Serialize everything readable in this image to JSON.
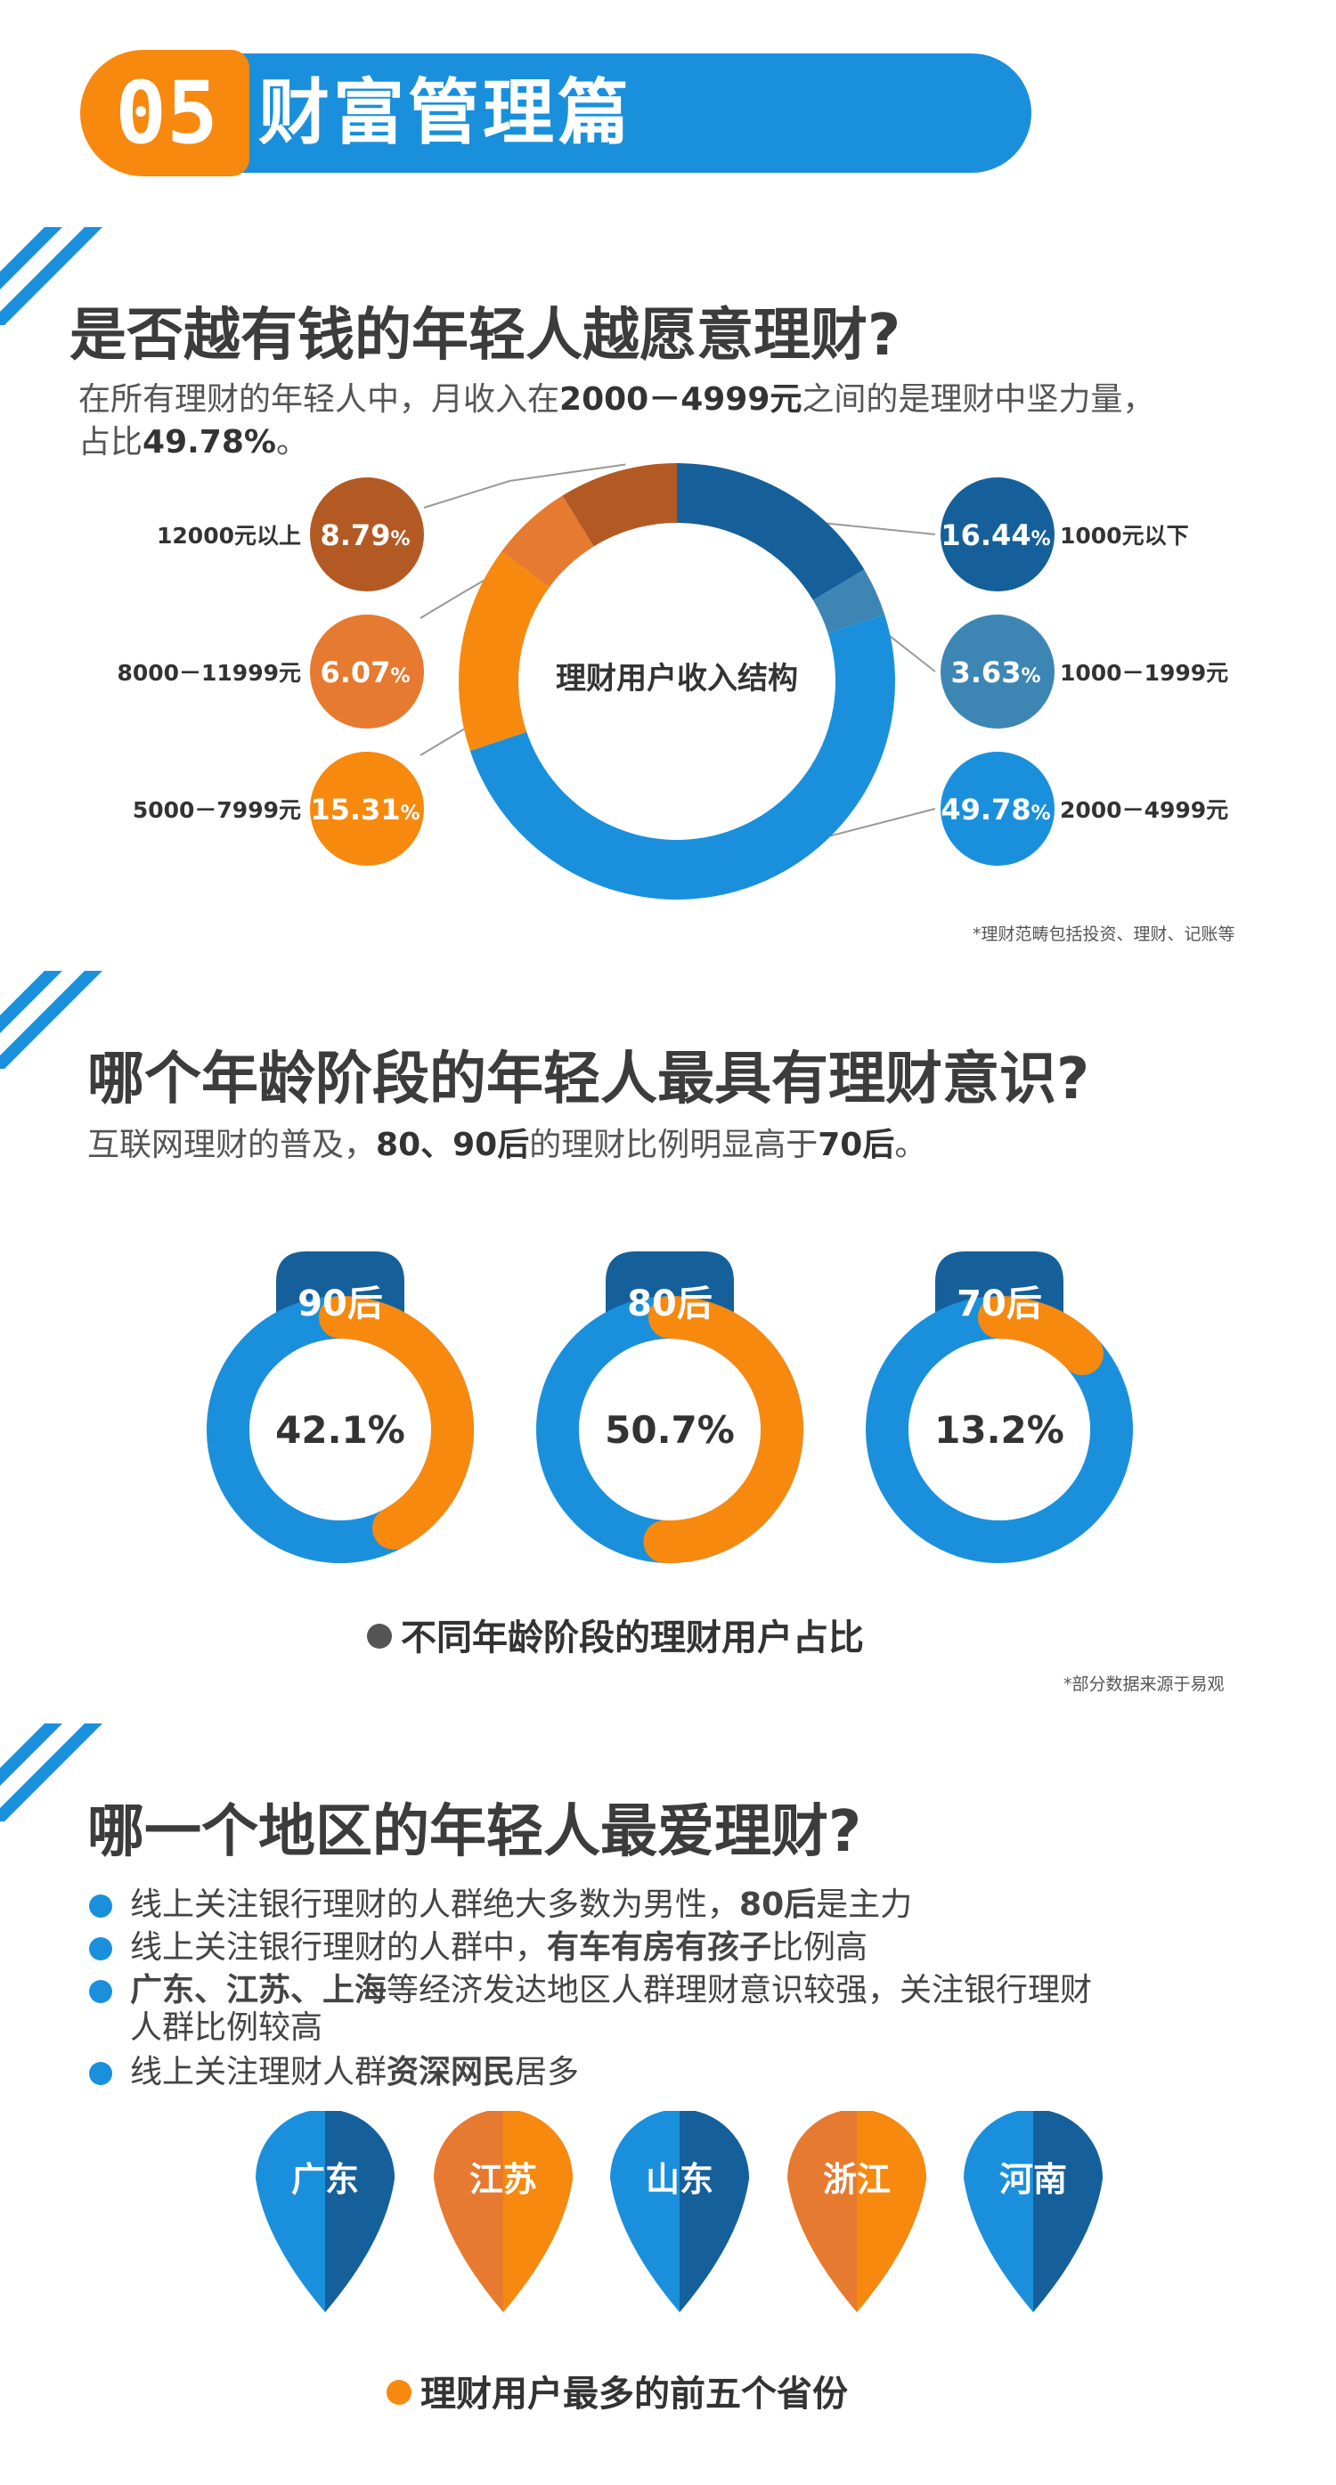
{
  "header": {
    "number": "05",
    "title": "财富管理篇"
  },
  "section1": {
    "question": "是否越有钱的年轻人越愿意理财?",
    "subtitle_a": "在所有理财的年轻人中，月收入在",
    "subtitle_b": "2000－4999元",
    "subtitle_c": "之间的是理财中坚力量，",
    "subtitle_d": "占比",
    "subtitle_e": "49.78%",
    "subtitle_f": "。",
    "note": "*理财范畴包括投资、理财、记账等"
  },
  "section2": {
    "question": "哪个年龄阶段的年轻人最具有理财意识?",
    "subtitle_a": "互联网理财的普及，",
    "subtitle_b": "80、90后",
    "subtitle_c": "的理财比例明显高于",
    "subtitle_d": "70后",
    "subtitle_e": "。",
    "caption": "不同年龄阶段的理财用户占比",
    "note": "*部分数据来源于易观"
  },
  "section3": {
    "question": "哪一个地区的年轻人最爱理财?",
    "b1_a": "线上关注银行理财的人群绝大多数为男性，",
    "b1_b": "80后",
    "b1_c": "是主力",
    "b2_a": "线上关注银行理财的人群中，",
    "b2_b": "有车有房有孩子",
    "b2_c": "比例高",
    "b3_a": "广东、江苏、上海",
    "b3_b": "等经济发达地区人群理财意识较强，关注银行理财",
    "b3_c": "人群比例较高",
    "b4_a": "线上关注理财人群",
    "b4_b": "资深网民",
    "b4_c": "居多",
    "caption": "理财用户最多的前五个省份"
  },
  "colors": {
    "blue": "#1a90dc",
    "dark_blue": "#15609a",
    "mid_blue": "#3d86b4",
    "orange": "#f7890f",
    "orange_mid": "#e67a30",
    "brown": "#b35a24"
  },
  "chart_data": [
    {
      "type": "pie",
      "title": "理财用户收入结构",
      "series": [
        {
          "name": "1000元以下",
          "value": 16.44,
          "color": "#15609a"
        },
        {
          "name": "1000－1999元",
          "value": 3.63,
          "color": "#3d86b4"
        },
        {
          "name": "2000－4999元",
          "value": 49.78,
          "color": "#1a90dc"
        },
        {
          "name": "5000－7999元",
          "value": 15.31,
          "color": "#f7890f"
        },
        {
          "name": "8000－11999元",
          "value": 6.07,
          "color": "#e67a30"
        },
        {
          "name": "12000元以上",
          "value": 8.79,
          "color": "#b35a24"
        }
      ]
    },
    {
      "type": "pie",
      "title": "不同年龄阶段的理财用户占比",
      "categories": [
        "90后",
        "80后",
        "70后"
      ],
      "values": [
        42.1,
        50.7,
        13.2
      ],
      "value_labels": [
        "42.1%",
        "50.7%",
        "13.2%"
      ]
    },
    {
      "type": "table",
      "title": "理财用户最多的前五个省份",
      "categories": [
        "广东",
        "江苏",
        "山东",
        "浙江",
        "河南"
      ],
      "marker_colors": [
        "blue",
        "orange",
        "blue",
        "orange",
        "blue"
      ]
    }
  ]
}
